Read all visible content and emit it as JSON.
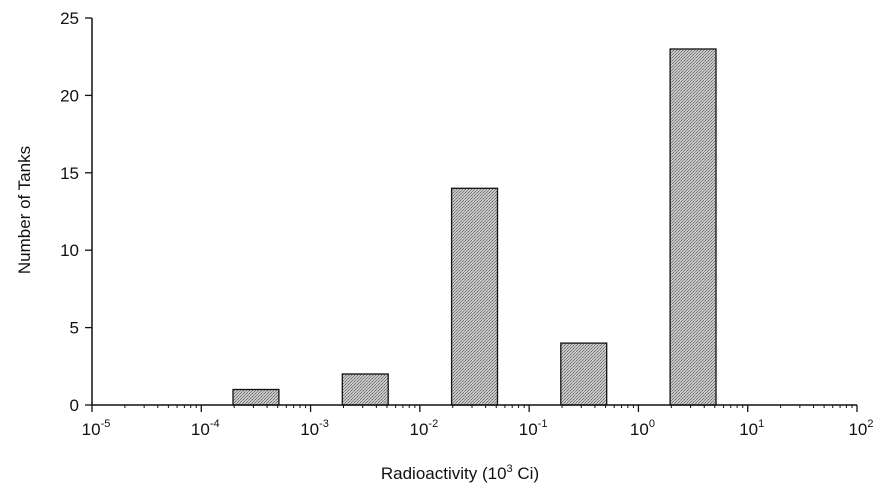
{
  "chart_data": {
    "type": "bar",
    "title": "",
    "xlabel": "Radioactivity (10³ Ci)",
    "ylabel": "Number of Tanks",
    "xscale": "log",
    "xlim": [
      1e-05,
      100
    ],
    "ylim": [
      0,
      25
    ],
    "grid": false,
    "x_ticks": [
      {
        "base": "10",
        "exp": "-5",
        "value": 1e-05
      },
      {
        "base": "10",
        "exp": "-4",
        "value": 0.0001
      },
      {
        "base": "10",
        "exp": "-3",
        "value": 0.001
      },
      {
        "base": "10",
        "exp": "-2",
        "value": 0.01
      },
      {
        "base": "10",
        "exp": "-1",
        "value": 0.1
      },
      {
        "base": "10",
        "exp": "0",
        "value": 1
      },
      {
        "base": "10",
        "exp": "1",
        "value": 10
      },
      {
        "base": "10",
        "exp": "2",
        "value": 100
      }
    ],
    "y_ticks": [
      "0",
      "5",
      "10",
      "15",
      "20",
      "25"
    ],
    "bars": [
      {
        "bin": [
          0.0001,
          0.001
        ],
        "value": 1
      },
      {
        "bin": [
          0.001,
          0.01
        ],
        "value": 2
      },
      {
        "bin": [
          0.01,
          0.1
        ],
        "value": 14
      },
      {
        "bin": [
          0.1,
          1
        ],
        "value": 4
      },
      {
        "bin": [
          1,
          10
        ],
        "value": 23
      }
    ],
    "bar_color": "#b4b4b4"
  }
}
